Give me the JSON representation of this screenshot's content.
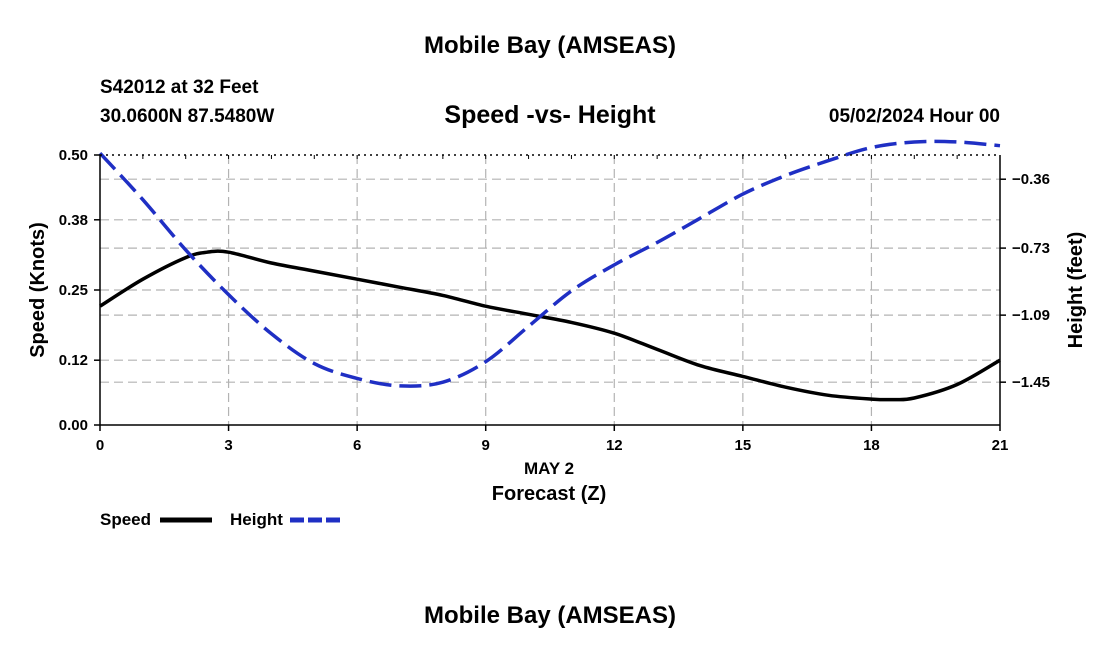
{
  "page": {
    "title": "Mobile Bay (AMSEAS)",
    "station": "S42012 at 32 Feet",
    "location": "30.0600N  87.5480W",
    "subtitle": "Speed -vs- Height",
    "datetime": "05/02/2024 Hour 00",
    "footer_title": "Mobile Bay (AMSEAS)"
  },
  "chart_data": {
    "type": "line",
    "title": "Speed -vs- Height",
    "xlabel": "Forecast (Z)",
    "xdate": "MAY 2",
    "ylabel": "Speed (Knots)",
    "y2label": "Height (feet)",
    "xlim": [
      0,
      21
    ],
    "ylim": [
      0,
      0.5
    ],
    "y2lim": [
      -1.68,
      -0.23
    ],
    "x_ticks": [
      0,
      3,
      6,
      9,
      12,
      15,
      18,
      21
    ],
    "y_ticks": [
      0.0,
      0.12,
      0.25,
      0.38,
      0.5
    ],
    "y_tick_labels": [
      "0.00",
      "0.12",
      "0.25",
      "0.38",
      "0.50"
    ],
    "y2_ticks": [
      -1.45,
      -1.09,
      -0.73,
      -0.36
    ],
    "y2_tick_labels": [
      "−1.45",
      "−1.09",
      "−0.73",
      "−0.36"
    ],
    "grid": true,
    "series": [
      {
        "name": "Speed",
        "axis": "left",
        "color": "#000000",
        "dash": "solid",
        "x": [
          0,
          1,
          2,
          2.5,
          3,
          4,
          5,
          6,
          7,
          8,
          9,
          10,
          11,
          12,
          13,
          14,
          15,
          16,
          17,
          18,
          18.5,
          19,
          20,
          21
        ],
        "values": [
          0.22,
          0.27,
          0.31,
          0.32,
          0.32,
          0.3,
          0.285,
          0.27,
          0.255,
          0.24,
          0.22,
          0.205,
          0.19,
          0.17,
          0.14,
          0.11,
          0.09,
          0.07,
          0.055,
          0.048,
          0.047,
          0.05,
          0.075,
          0.12
        ]
      },
      {
        "name": "Height",
        "axis": "right",
        "color": "#1f2fc4",
        "dash": "dashed",
        "x": [
          0,
          1,
          2,
          3,
          4,
          5,
          6,
          7,
          8,
          9,
          10,
          11,
          12,
          13,
          14,
          15,
          16,
          17,
          18,
          19,
          20,
          21
        ],
        "values": [
          -0.22,
          -0.47,
          -0.74,
          -0.98,
          -1.19,
          -1.35,
          -1.43,
          -1.47,
          -1.45,
          -1.34,
          -1.15,
          -0.96,
          -0.82,
          -0.7,
          -0.57,
          -0.44,
          -0.34,
          -0.26,
          -0.19,
          -0.16,
          -0.16,
          -0.18
        ]
      }
    ],
    "legend": [
      {
        "label": "Speed",
        "color": "#000000",
        "dash": "solid"
      },
      {
        "label": "Height",
        "color": "#1f2fc4",
        "dash": "dashed"
      }
    ]
  }
}
